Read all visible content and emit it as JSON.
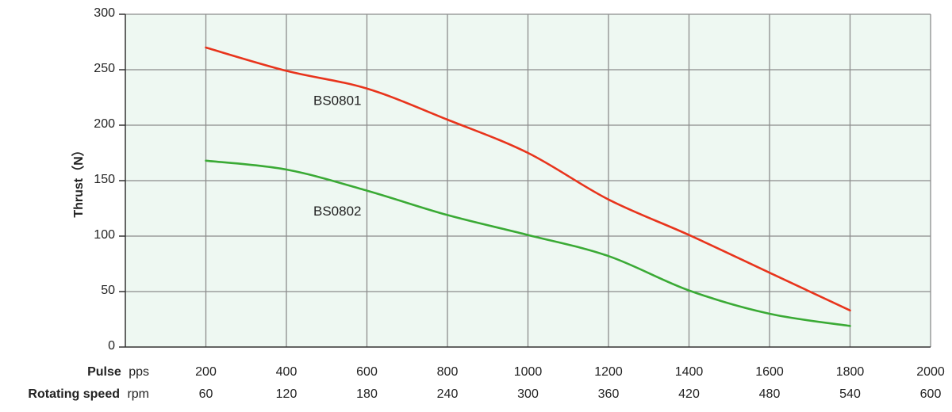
{
  "chart_data": {
    "type": "line",
    "x": [
      200,
      400,
      600,
      800,
      1000,
      1200,
      1400,
      1600,
      1800
    ],
    "xlim": [
      0,
      2000
    ],
    "x_ticks": [
      200,
      400,
      600,
      800,
      1000,
      1200,
      1400,
      1600,
      1800,
      2000
    ],
    "x_label_primary": "Pulse",
    "x_unit_primary": "pps",
    "x_label_secondary": "Rotating speed",
    "x_unit_secondary": "rpm",
    "x_secondary_ticks": [
      60,
      120,
      180,
      240,
      300,
      360,
      420,
      480,
      540,
      600
    ],
    "ylabel": "Thrust（N）",
    "ylim": [
      0,
      300
    ],
    "y_ticks": [
      0,
      50,
      100,
      150,
      200,
      250,
      300
    ],
    "grid": true,
    "series": [
      {
        "name": "BS0801",
        "color": "#e8341c",
        "values": [
          270,
          249,
          233,
          205,
          175,
          133,
          101,
          67,
          33
        ]
      },
      {
        "name": "BS0802",
        "color": "#3aaa35",
        "values": [
          168,
          160,
          141,
          119,
          101,
          82,
          51,
          30,
          19
        ]
      }
    ]
  },
  "colors": {
    "plot_background": "#eef8f2",
    "grid": "#8c8c8c",
    "axis": "#333333"
  }
}
